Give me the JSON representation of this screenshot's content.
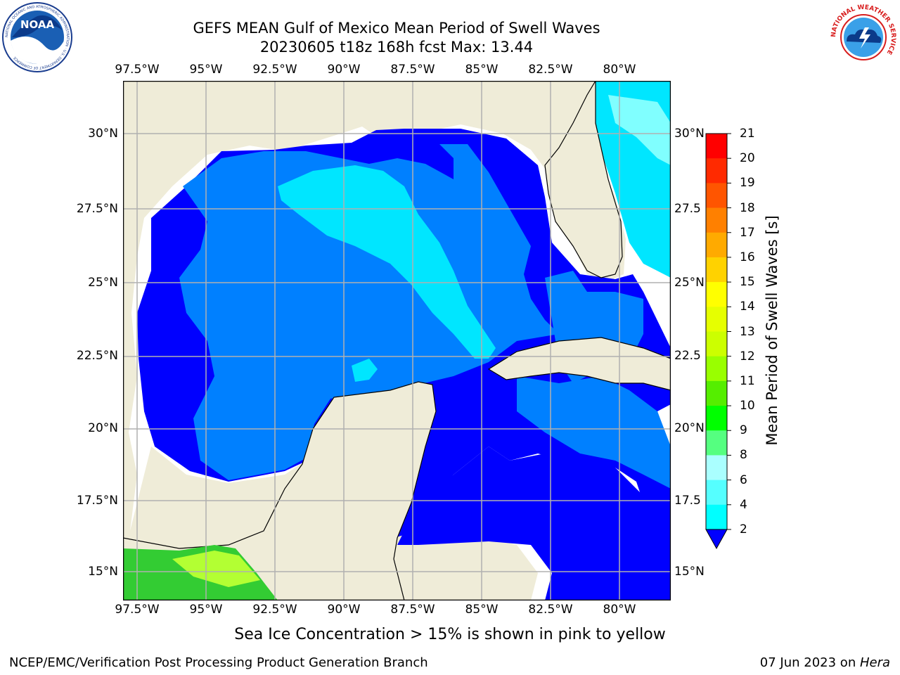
{
  "header": {
    "title_line1": "GEFS MEAN Gulf of Mexico Mean Period of Swell Waves",
    "title_line2": "20230605 t18z 168h fcst   Max: 13.44"
  },
  "logos": {
    "left": "NOAA",
    "left_ring": "NATIONAL OCEANIC AND ATMOSPHERIC ADMINISTRATION · U.S. DEPARTMENT OF COMMERCE",
    "right_ring": "NATIONAL WEATHER SERVICE"
  },
  "map": {
    "lon_labels": [
      "97.5°W",
      "95°W",
      "92.5°W",
      "90°W",
      "87.5°W",
      "85°W",
      "82.5°W",
      "80°W"
    ],
    "lat_labels_left": [
      "30°N",
      "27.5°N",
      "25°N",
      "22.5°N",
      "20°N",
      "17.5°N",
      "15°N"
    ],
    "lat_labels_right": [
      "30°N",
      "27.5",
      "25°N",
      "22.5",
      "20°N",
      "17.5",
      "15°N"
    ],
    "colors": {
      "land": "#efecd8",
      "blue_2_4": "#0000ff",
      "blue_4_6": "#0080ff",
      "cyan_6_8": "#00e6ff",
      "cyan_8_9": "#80ffff",
      "green": "#33cc33",
      "lime": "#b3ff33"
    }
  },
  "colorbar": {
    "label": "Mean Period of Swell Waves [s]",
    "ticks": [
      "21",
      "20",
      "19",
      "18",
      "17",
      "16",
      "15",
      "14",
      "13",
      "12",
      "11",
      "10",
      "9",
      "8",
      "6",
      "4",
      "2"
    ],
    "colors": [
      "#ff0000",
      "#ff2a00",
      "#ff5500",
      "#ff8000",
      "#ffaa00",
      "#ffd200",
      "#ffff00",
      "#e6ff00",
      "#ccff00",
      "#99ff00",
      "#55ee00",
      "#00ff00",
      "#55ff80",
      "#aaffff",
      "#55ffff",
      "#00ffff",
      "#0080ff"
    ],
    "extend_color": "#0000ff"
  },
  "note": "Sea Ice Concentration > 15% is shown in pink to yellow",
  "footer": {
    "left": "NCEP/EMC/Verification Post Processing Product Generation Branch",
    "right_date": "07 Jun 2023 on ",
    "right_host": "Hera"
  }
}
